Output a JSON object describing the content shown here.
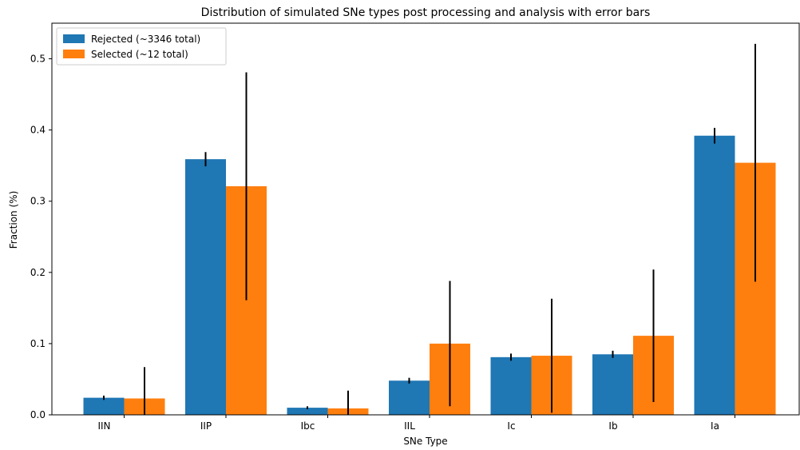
{
  "chart_data": {
    "type": "bar",
    "title": "Distribution of simulated SNe types post processing and analysis with error bars",
    "xlabel": "SNe Type",
    "ylabel": "Fraction (%)",
    "categories": [
      "IIN",
      "IIP",
      "Ibc",
      "IIL",
      "Ic",
      "Ib",
      "Ia"
    ],
    "ylim": [
      0,
      0.55
    ],
    "yticks": [
      "0.0",
      "0.1",
      "0.2",
      "0.3",
      "0.4",
      "0.5"
    ],
    "legend_position": "top-left",
    "series": [
      {
        "name": "Rejected (~3346 total)",
        "color": "#1f77b4",
        "values": [
          0.024,
          0.359,
          0.01,
          0.048,
          0.081,
          0.085,
          0.392
        ],
        "errors": [
          0.003,
          0.01,
          0.002,
          0.004,
          0.005,
          0.005,
          0.011
        ]
      },
      {
        "name": "Selected (~12 total)",
        "color": "#ff7f0e",
        "values": [
          0.023,
          0.321,
          0.009,
          0.1,
          0.083,
          0.111,
          0.354
        ],
        "errors": [
          0.044,
          0.16,
          0.025,
          0.088,
          0.08,
          0.093,
          0.167
        ]
      }
    ]
  }
}
